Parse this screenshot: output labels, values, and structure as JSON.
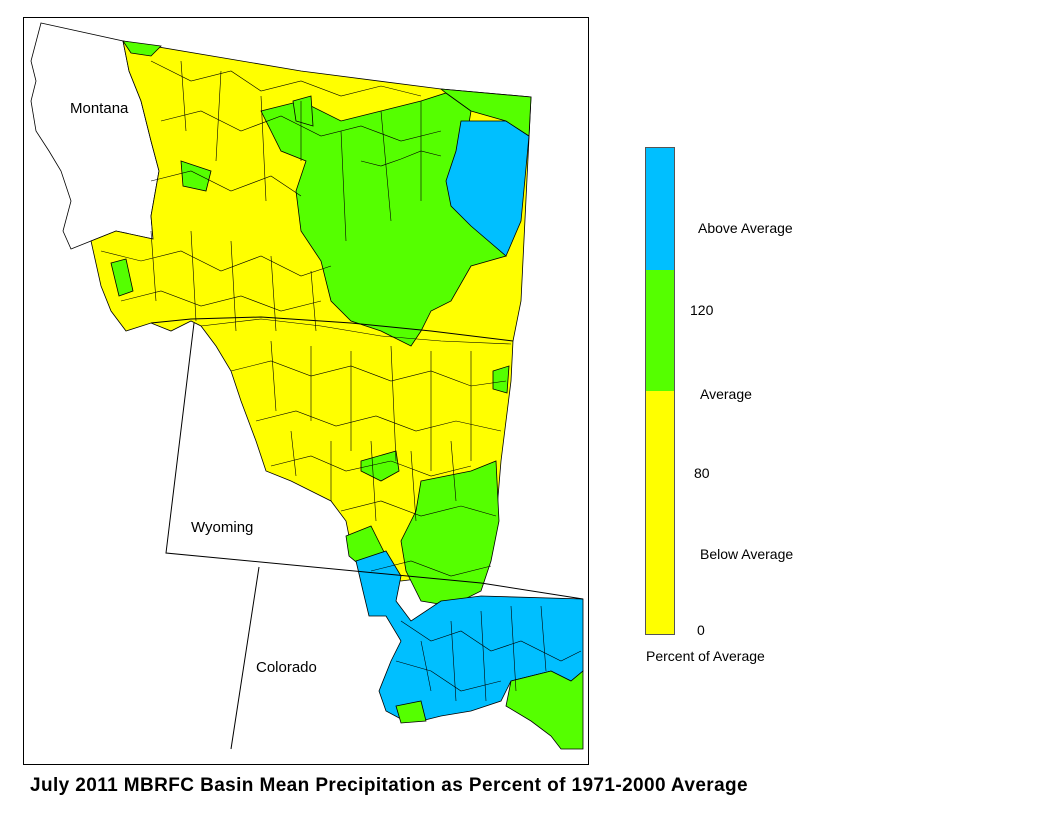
{
  "colors": {
    "above": "#00bfff",
    "average": "#55ff00",
    "below": "#ffff00",
    "outline": "#000000"
  },
  "states": {
    "montana": "Montana",
    "wyoming": "Wyoming",
    "colorado": "Colorado"
  },
  "legend": {
    "above_label": "Above Average",
    "average_label": "Average",
    "below_label": "Below Average",
    "tick_120": "120",
    "tick_80": "80",
    "tick_0": "0",
    "title": "Percent of Average",
    "scale_max": 160,
    "segments": [
      {
        "from": 120,
        "to": 160,
        "class": "above"
      },
      {
        "from": 80,
        "to": 120,
        "class": "average"
      },
      {
        "from": 0,
        "to": 80,
        "class": "below"
      }
    ]
  },
  "caption": "July 2011 MBRFC Basin Mean Precipitation as Percent of 1971-2000 Average"
}
